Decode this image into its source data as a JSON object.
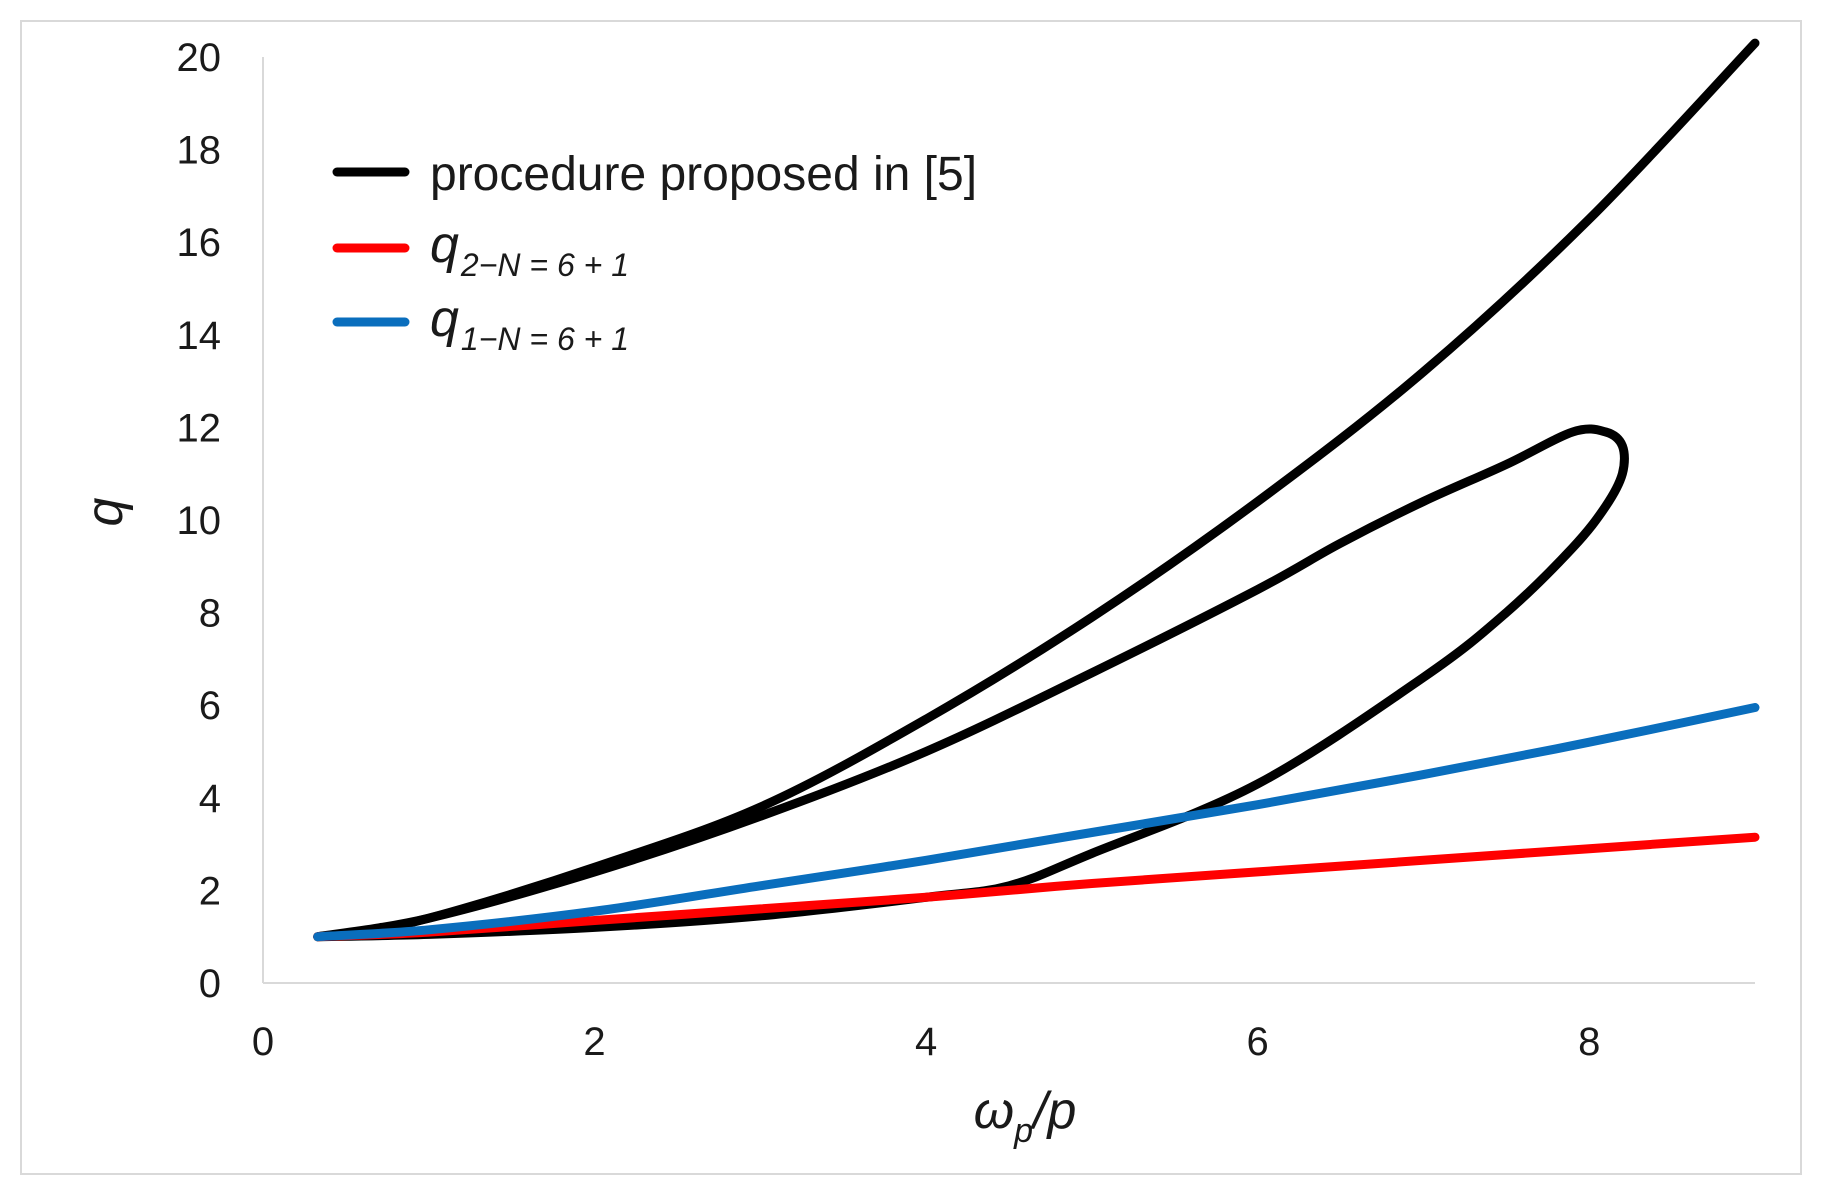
{
  "chart_data": {
    "type": "line",
    "xlabel_main": "ω",
    "xlabel_sub": "p",
    "xlabel_tail": "/p",
    "ylabel": "q",
    "xlim": [
      0,
      9
    ],
    "ylim": [
      0,
      20
    ],
    "xticks": [
      0,
      2,
      4,
      6,
      8
    ],
    "yticks": [
      0,
      2,
      4,
      6,
      8,
      10,
      12,
      14,
      16,
      18,
      20
    ],
    "grid": false,
    "legend_position": "top-left",
    "series": [
      {
        "name": "procedure proposed in [5]",
        "name_sub": "",
        "color": "#000000",
        "x": [
          0.33,
          0.7,
          1.2,
          2.0,
          3.0,
          4.0,
          5.0,
          6.0,
          7.0,
          8.0,
          9.0
        ],
        "y": [
          1.0,
          1.15,
          1.6,
          2.5,
          3.8,
          5.7,
          7.9,
          10.4,
          13.2,
          16.5,
          20.3
        ]
      },
      {
        "name": "",
        "name_sub": "",
        "color": "#000000",
        "x": [
          0.33,
          1.0,
          2.0,
          3.0,
          4.0,
          5.0,
          6.0,
          6.5,
          7.0,
          7.5,
          7.9,
          8.1,
          8.2,
          8.2,
          8.1,
          7.9,
          7.5,
          7.0,
          6.0,
          5.0,
          4.5,
          4.0,
          3.0,
          2.0,
          1.0,
          0.33
        ],
        "y": [
          1.0,
          1.4,
          2.4,
          3.6,
          5.0,
          6.7,
          8.5,
          9.5,
          10.4,
          11.2,
          11.9,
          11.9,
          11.6,
          11.0,
          10.3,
          9.4,
          8.0,
          6.6,
          4.3,
          2.8,
          2.1,
          1.85,
          1.45,
          1.2,
          1.05,
          1.0
        ]
      },
      {
        "name": "q",
        "name_sub": "2−N = 6 + 1",
        "color": "#ff0000",
        "x": [
          0.33,
          1.0,
          2.0,
          3.0,
          4.0,
          5.0,
          6.0,
          7.0,
          8.0,
          9.0
        ],
        "y": [
          1.0,
          1.1,
          1.35,
          1.6,
          1.85,
          2.15,
          2.4,
          2.65,
          2.9,
          3.15
        ]
      },
      {
        "name": "q",
        "name_sub": "1−N = 6 + 1",
        "color": "#0a6ebd",
        "x": [
          0.33,
          1.0,
          2.0,
          3.0,
          4.0,
          5.0,
          6.0,
          7.0,
          8.0,
          9.0
        ],
        "y": [
          1.0,
          1.15,
          1.55,
          2.1,
          2.65,
          3.25,
          3.85,
          4.5,
          5.2,
          5.95
        ]
      }
    ]
  }
}
